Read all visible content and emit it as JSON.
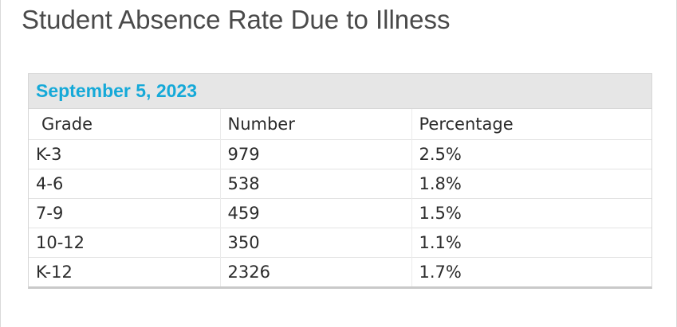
{
  "page": {
    "title": "Student Absence Rate Due to Illness"
  },
  "table": {
    "date": "September 5, 2023",
    "headers": [
      "Grade",
      "Number",
      "Percentage"
    ],
    "rows": [
      [
        "K-3",
        "979",
        "2.5%"
      ],
      [
        "4-6",
        "538",
        "1.8%"
      ],
      [
        "7-9",
        "459",
        "1.5%"
      ],
      [
        "10-12",
        "350",
        "1.1%"
      ],
      [
        "K-12",
        "2326",
        "1.7%"
      ]
    ]
  },
  "colors": {
    "date_accent": "#15a9d8",
    "header_band": "#e6e6e6",
    "title_text": "#4a4a4a"
  }
}
